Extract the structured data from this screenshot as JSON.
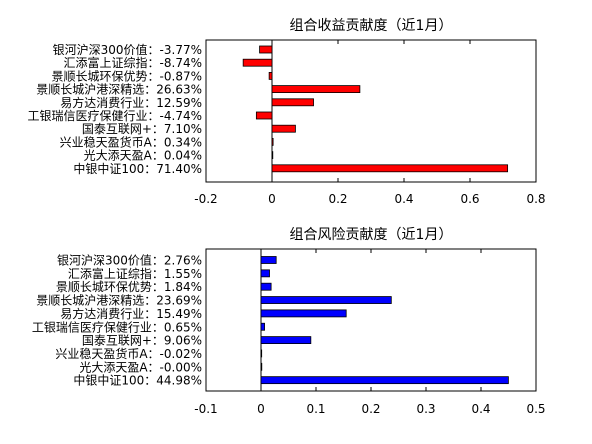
{
  "chart_data": [
    {
      "type": "bar",
      "orientation": "horizontal",
      "title": "组合收益贡献度（近1月）",
      "color": "#ff0000",
      "xlim": [
        -0.2,
        0.8
      ],
      "xticks": [
        "-0.2",
        "0",
        "0.2",
        "0.4",
        "0.6",
        "0.8"
      ],
      "xtick_values": [
        -0.2,
        0,
        0.2,
        0.4,
        0.6,
        0.8
      ],
      "categories": [
        "银河沪深300价值：-3.77%",
        "汇添富上证综指：-8.74%",
        "景顺长城环保优势：-0.87%",
        "景顺长城沪港深精选：26.63%",
        "易方达消费行业：12.59%",
        "工银瑞信医疗保健行业：-4.74%",
        "国泰互联网+：7.10%",
        "兴业稳天盈货币A：0.34%",
        "光大添天盈A：0.04%",
        "中银中证100：71.40%"
      ],
      "values": [
        -0.0377,
        -0.0874,
        -0.0087,
        0.2663,
        0.1259,
        -0.0474,
        0.071,
        0.0034,
        0.0004,
        0.714
      ]
    },
    {
      "type": "bar",
      "orientation": "horizontal",
      "title": "组合风险贡献度（近1月）",
      "color": "#0000ff",
      "xlim": [
        -0.1,
        0.5
      ],
      "xticks": [
        "-0.1",
        "0",
        "0.1",
        "0.2",
        "0.3",
        "0.4",
        "0.5"
      ],
      "xtick_values": [
        -0.1,
        0,
        0.1,
        0.2,
        0.3,
        0.4,
        0.5
      ],
      "categories": [
        "银河沪深300价值：2.76%",
        "汇添富上证综指：1.55%",
        "景顺长城环保优势：1.84%",
        "景顺长城沪港深精选：23.69%",
        "易方达消费行业：15.49%",
        "工银瑞信医疗保健行业：0.65%",
        "国泰互联网+：9.06%",
        "兴业稳天盈货币A：-0.02%",
        "光大添天盈A：-0.00%",
        "中银中证100：44.98%"
      ],
      "values": [
        0.0276,
        0.0155,
        0.0184,
        0.2369,
        0.1549,
        0.0065,
        0.0906,
        -0.0002,
        -0.0,
        0.4498
      ]
    }
  ]
}
